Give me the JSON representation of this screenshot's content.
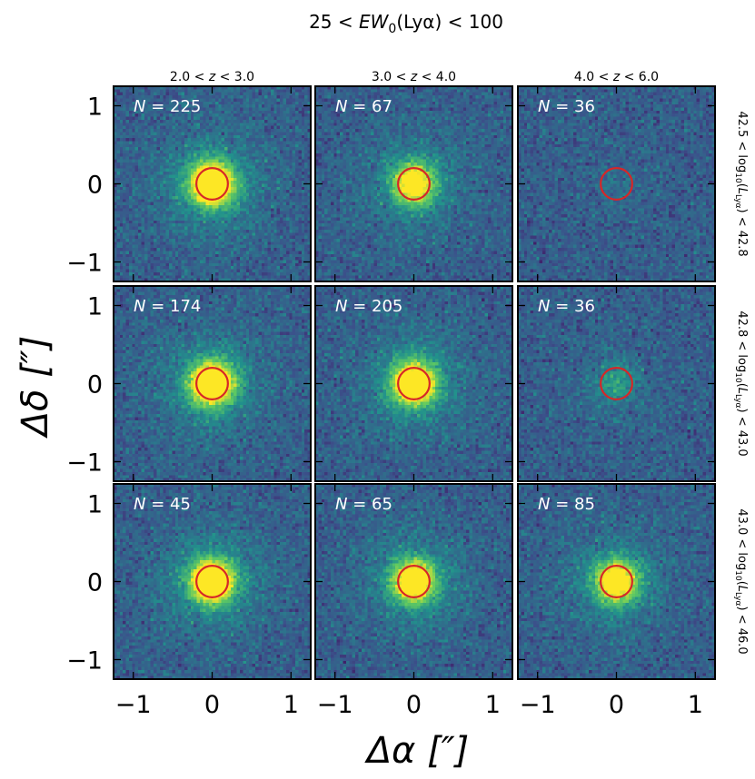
{
  "chart_data": {
    "type": "heatmap",
    "title": "25 < EW₀(Lyα) < 100",
    "title_parts": {
      "pre": "25 < ",
      "ew": "EW",
      "sub0": "0",
      "post": "(Lyα) < 100"
    },
    "xlabel": "Δα [″]",
    "ylabel": "Δδ [″]",
    "xlim": [
      -1.25,
      1.25
    ],
    "ylim": [
      -1.25,
      1.25
    ],
    "xticks": [
      -1,
      0,
      1
    ],
    "yticks": [
      -1,
      0,
      1
    ],
    "tick_labels": [
      "−1",
      "0",
      "1"
    ],
    "aperture": {
      "x": 0,
      "y": 0,
      "radius": 0.2,
      "color": "#d62728"
    },
    "columns": [
      {
        "label": "2.0 < z < 3.0",
        "lo": "2.0",
        "hi": "3.0"
      },
      {
        "label": "3.0 < z < 4.0",
        "lo": "3.0",
        "hi": "4.0"
      },
      {
        "label": "4.0 < z < 6.0",
        "lo": "4.0",
        "hi": "6.0"
      }
    ],
    "rows": [
      {
        "label": "42.5 < log₁₀(L_Lyα) < 42.8",
        "lo": "42.5",
        "hi": "42.8"
      },
      {
        "label": "42.8 < log₁₀(L_Lyα) < 43.0",
        "lo": "42.8",
        "hi": "43.0"
      },
      {
        "label": "43.0 < log₁₀(L_Lyα) < 46.0",
        "lo": "43.0",
        "hi": "46.0"
      }
    ],
    "n_labels": [
      [
        "N = 225",
        "N = 67",
        "N = 36"
      ],
      [
        "N = 174",
        "N = 205",
        "N = 36"
      ],
      [
        "N = 45",
        "N = 65",
        "N = 85"
      ]
    ],
    "counts": [
      [
        225,
        67,
        36
      ],
      [
        174,
        205,
        36
      ],
      [
        45,
        65,
        85
      ]
    ],
    "signal_strength": [
      [
        1.0,
        0.75,
        0.05
      ],
      [
        1.0,
        0.95,
        0.2
      ],
      [
        1.0,
        0.85,
        0.8
      ]
    ],
    "colormap": [
      "#440154",
      "#3b528b",
      "#21918c",
      "#5ec962",
      "#fde725"
    ]
  }
}
